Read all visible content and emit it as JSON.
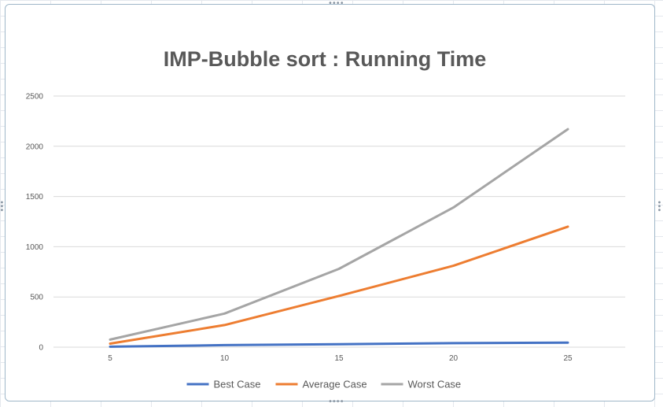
{
  "chart_data": {
    "type": "line",
    "title": "IMP-Bubble sort : Running Time",
    "xlabel": "",
    "ylabel": "",
    "x": [
      5,
      10,
      15,
      20,
      25
    ],
    "ylim": [
      0,
      2500
    ],
    "yticks": [
      0,
      500,
      1000,
      1500,
      2000,
      2500
    ],
    "grid": true,
    "legend_position": "bottom",
    "series": [
      {
        "name": "Best Case",
        "color": "#4472c4",
        "values": [
          5,
          20,
          30,
          40,
          45
        ]
      },
      {
        "name": "Average Case",
        "color": "#ed7d31",
        "values": [
          35,
          220,
          510,
          810,
          1200
        ]
      },
      {
        "name": "Worst Case",
        "color": "#a5a5a5",
        "values": [
          75,
          335,
          780,
          1390,
          2170
        ]
      }
    ]
  }
}
